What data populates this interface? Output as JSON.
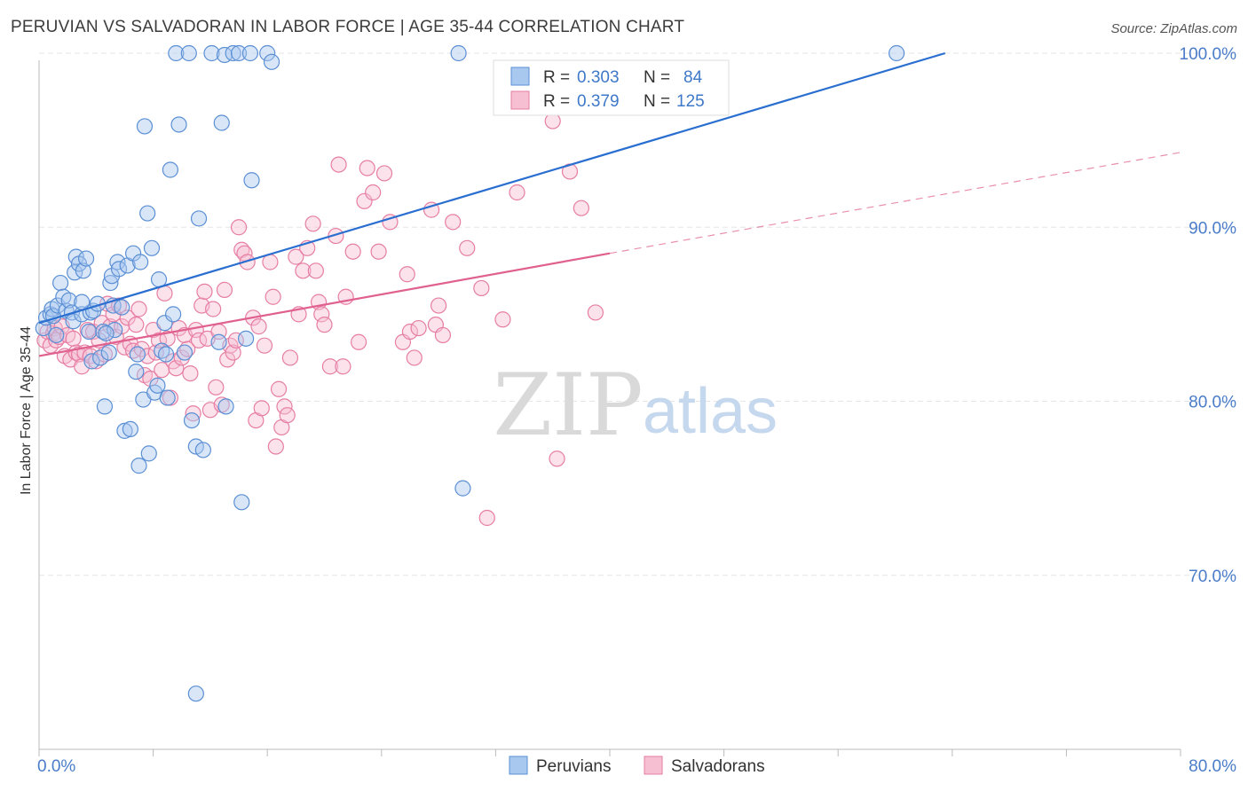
{
  "header": {
    "title": "PERUVIAN VS SALVADORAN IN LABOR FORCE | AGE 35-44 CORRELATION CHART",
    "source": "Source: ZipAtlas.com"
  },
  "watermark": {
    "zip": "ZIP",
    "atlas": "atlas"
  },
  "legend_box": {
    "rows": [
      {
        "r_label": "R =",
        "r_value": "0.303",
        "n_label": "N =",
        "n_value": "84"
      },
      {
        "r_label": "R =",
        "r_value": "0.379",
        "n_label": "N =",
        "n_value": "125"
      }
    ]
  },
  "colors": {
    "peruvians_fill": "#a9c8f0",
    "peruvians_stroke": "#5b8fd4",
    "peruvians_line": "#2a6fd0",
    "salvadorans_fill": "#f7bfd2",
    "salvadorans_stroke": "#e67ea3",
    "salvadorans_line": "#e0608e",
    "tick_text": "#4a7cc9",
    "grid": "#e6e6e6"
  },
  "chart_data": {
    "type": "scatter",
    "title": "PERUVIAN VS SALVADORAN IN LABOR FORCE | AGE 35-44 CORRELATION CHART",
    "xlabel": "",
    "ylabel": "In Labor Force | Age 35-44",
    "xlim": [
      0,
      80
    ],
    "ylim": [
      60,
      100
    ],
    "x_tick_labels": [
      "0.0%",
      "80.0%"
    ],
    "y_ticks": [
      70,
      80,
      90,
      100
    ],
    "y_tick_labels": [
      "70.0%",
      "80.0%",
      "90.0%",
      "100.0%"
    ],
    "grid": true,
    "legend_position": "bottom-center",
    "series": [
      {
        "name": "Peruvians",
        "R": 0.303,
        "N": 84,
        "trend": {
          "x0": 0,
          "y0": 84.5,
          "x1": 63.5,
          "y1": 100,
          "dashed_to": null
        },
        "points": [
          [
            0.3,
            84.2
          ],
          [
            0.5,
            84.8
          ],
          [
            0.8,
            85.0
          ],
          [
            0.9,
            85.3
          ],
          [
            1.0,
            84.9
          ],
          [
            1.2,
            83.8
          ],
          [
            1.3,
            85.5
          ],
          [
            1.5,
            86.8
          ],
          [
            1.7,
            86.0
          ],
          [
            1.9,
            85.2
          ],
          [
            2.1,
            85.8
          ],
          [
            2.3,
            85.1
          ],
          [
            2.4,
            84.6
          ],
          [
            2.5,
            87.4
          ],
          [
            2.6,
            88.3
          ],
          [
            2.8,
            87.9
          ],
          [
            3.0,
            85.0
          ],
          [
            3.1,
            87.5
          ],
          [
            3.3,
            88.2
          ],
          [
            3.5,
            84.0
          ],
          [
            3.6,
            85.1
          ],
          [
            3.7,
            82.3
          ],
          [
            3.8,
            85.2
          ],
          [
            4.1,
            85.6
          ],
          [
            4.3,
            82.5
          ],
          [
            4.5,
            84.0
          ],
          [
            4.6,
            79.7
          ],
          [
            4.9,
            82.8
          ],
          [
            5.0,
            86.8
          ],
          [
            5.1,
            87.2
          ],
          [
            5.2,
            85.5
          ],
          [
            5.3,
            84.1
          ],
          [
            5.5,
            88.0
          ],
          [
            5.6,
            87.6
          ],
          [
            5.8,
            85.4
          ],
          [
            6.0,
            78.3
          ],
          [
            6.2,
            87.8
          ],
          [
            6.4,
            78.4
          ],
          [
            6.6,
            88.5
          ],
          [
            6.8,
            81.7
          ],
          [
            7.0,
            76.3
          ],
          [
            7.1,
            88.0
          ],
          [
            7.3,
            80.1
          ],
          [
            7.4,
            95.8
          ],
          [
            7.6,
            90.8
          ],
          [
            7.7,
            77.0
          ],
          [
            7.9,
            88.8
          ],
          [
            8.1,
            80.5
          ],
          [
            8.3,
            80.9
          ],
          [
            8.4,
            87.0
          ],
          [
            8.6,
            82.9
          ],
          [
            8.8,
            84.5
          ],
          [
            8.9,
            82.7
          ],
          [
            9.0,
            80.2
          ],
          [
            9.2,
            93.3
          ],
          [
            9.4,
            85.0
          ],
          [
            9.6,
            100.0
          ],
          [
            9.8,
            95.9
          ],
          [
            10.2,
            82.8
          ],
          [
            10.5,
            100.0
          ],
          [
            10.7,
            78.9
          ],
          [
            11.0,
            77.4
          ],
          [
            11.2,
            90.5
          ],
          [
            11.5,
            77.2
          ],
          [
            12.1,
            100.0
          ],
          [
            12.6,
            83.4
          ],
          [
            12.8,
            96.0
          ],
          [
            13.0,
            99.9
          ],
          [
            13.1,
            79.7
          ],
          [
            13.6,
            100.0
          ],
          [
            14.0,
            100.0
          ],
          [
            14.2,
            74.2
          ],
          [
            14.5,
            83.6
          ],
          [
            14.8,
            100.0
          ],
          [
            14.9,
            92.7
          ],
          [
            16.0,
            100.0
          ],
          [
            16.3,
            99.5
          ],
          [
            29.4,
            100.0
          ],
          [
            29.7,
            75.0
          ],
          [
            60.1,
            100.0
          ],
          [
            11.0,
            63.2
          ],
          [
            6.9,
            82.7
          ],
          [
            4.7,
            83.9
          ],
          [
            3.0,
            85.7
          ]
        ]
      },
      {
        "name": "Salvadorans",
        "R": 0.379,
        "N": 125,
        "trend": {
          "x0": 0,
          "y0": 82.6,
          "x1": 40.0,
          "y1": 88.5,
          "dashed_to": [
            80,
            94.3
          ]
        },
        "points": [
          [
            0.4,
            83.5
          ],
          [
            0.6,
            84.0
          ],
          [
            0.8,
            83.2
          ],
          [
            1.0,
            83.9
          ],
          [
            1.1,
            84.2
          ],
          [
            1.2,
            83.5
          ],
          [
            1.4,
            83.7
          ],
          [
            1.6,
            84.3
          ],
          [
            1.8,
            82.6
          ],
          [
            2.0,
            83.8
          ],
          [
            2.2,
            82.4
          ],
          [
            2.4,
            83.6
          ],
          [
            2.6,
            82.8
          ],
          [
            2.8,
            82.7
          ],
          [
            3.0,
            82.0
          ],
          [
            3.2,
            82.8
          ],
          [
            3.4,
            84.1
          ],
          [
            3.6,
            82.6
          ],
          [
            3.8,
            84.0
          ],
          [
            4.0,
            82.3
          ],
          [
            4.2,
            83.5
          ],
          [
            4.4,
            84.5
          ],
          [
            4.6,
            82.7
          ],
          [
            4.8,
            85.6
          ],
          [
            5.0,
            84.3
          ],
          [
            5.2,
            85.0
          ],
          [
            5.4,
            83.7
          ],
          [
            5.6,
            85.5
          ],
          [
            5.8,
            84.3
          ],
          [
            6.0,
            83.1
          ],
          [
            6.2,
            84.8
          ],
          [
            6.4,
            83.3
          ],
          [
            6.6,
            82.9
          ],
          [
            6.8,
            84.4
          ],
          [
            7.0,
            85.3
          ],
          [
            7.2,
            83.0
          ],
          [
            7.4,
            81.5
          ],
          [
            7.6,
            82.6
          ],
          [
            7.8,
            81.3
          ],
          [
            8.0,
            84.1
          ],
          [
            8.2,
            82.8
          ],
          [
            8.4,
            83.5
          ],
          [
            8.6,
            81.8
          ],
          [
            8.8,
            86.2
          ],
          [
            9.0,
            83.6
          ],
          [
            9.2,
            80.2
          ],
          [
            9.4,
            82.3
          ],
          [
            9.6,
            81.9
          ],
          [
            9.8,
            84.2
          ],
          [
            10.0,
            82.5
          ],
          [
            10.2,
            83.8
          ],
          [
            10.4,
            83.0
          ],
          [
            10.6,
            81.6
          ],
          [
            10.8,
            79.3
          ],
          [
            11.0,
            84.1
          ],
          [
            11.2,
            83.5
          ],
          [
            11.4,
            85.5
          ],
          [
            11.6,
            86.3
          ],
          [
            11.8,
            83.6
          ],
          [
            12.0,
            79.5
          ],
          [
            12.2,
            85.3
          ],
          [
            12.4,
            80.8
          ],
          [
            12.6,
            84.0
          ],
          [
            12.8,
            79.8
          ],
          [
            13.0,
            86.4
          ],
          [
            13.2,
            82.4
          ],
          [
            13.4,
            83.2
          ],
          [
            13.6,
            82.8
          ],
          [
            13.8,
            83.5
          ],
          [
            14.0,
            90.0
          ],
          [
            14.2,
            88.7
          ],
          [
            14.4,
            88.5
          ],
          [
            14.6,
            88.0
          ],
          [
            15.0,
            84.8
          ],
          [
            15.2,
            78.9
          ],
          [
            15.4,
            84.3
          ],
          [
            15.6,
            79.6
          ],
          [
            15.8,
            83.2
          ],
          [
            16.2,
            88.0
          ],
          [
            16.4,
            86.0
          ],
          [
            16.6,
            77.4
          ],
          [
            16.8,
            80.7
          ],
          [
            17.0,
            78.5
          ],
          [
            17.2,
            79.7
          ],
          [
            17.4,
            79.2
          ],
          [
            17.6,
            82.5
          ],
          [
            18.0,
            88.3
          ],
          [
            18.2,
            85.0
          ],
          [
            18.5,
            87.5
          ],
          [
            18.8,
            88.8
          ],
          [
            19.2,
            90.2
          ],
          [
            19.4,
            87.5
          ],
          [
            19.6,
            85.7
          ],
          [
            19.8,
            85.0
          ],
          [
            20.0,
            84.4
          ],
          [
            20.4,
            82.0
          ],
          [
            20.8,
            89.5
          ],
          [
            21.0,
            93.6
          ],
          [
            21.3,
            82.0
          ],
          [
            21.5,
            86.0
          ],
          [
            22.0,
            88.6
          ],
          [
            22.4,
            83.4
          ],
          [
            22.8,
            91.5
          ],
          [
            23.0,
            93.4
          ],
          [
            23.4,
            92.0
          ],
          [
            23.8,
            88.6
          ],
          [
            24.2,
            93.1
          ],
          [
            24.6,
            90.3
          ],
          [
            25.5,
            83.4
          ],
          [
            25.8,
            87.3
          ],
          [
            26.0,
            84.0
          ],
          [
            26.3,
            82.5
          ],
          [
            26.6,
            84.2
          ],
          [
            27.5,
            91.0
          ],
          [
            27.8,
            84.4
          ],
          [
            28.0,
            85.5
          ],
          [
            28.3,
            83.8
          ],
          [
            29.0,
            90.3
          ],
          [
            30.0,
            88.8
          ],
          [
            31.0,
            86.5
          ],
          [
            31.4,
            73.3
          ],
          [
            32.5,
            84.7
          ],
          [
            33.5,
            92.0
          ],
          [
            36.0,
            96.1
          ],
          [
            37.2,
            93.2
          ],
          [
            36.3,
            76.7
          ],
          [
            38.0,
            91.1
          ],
          [
            39.0,
            85.1
          ]
        ]
      }
    ]
  }
}
